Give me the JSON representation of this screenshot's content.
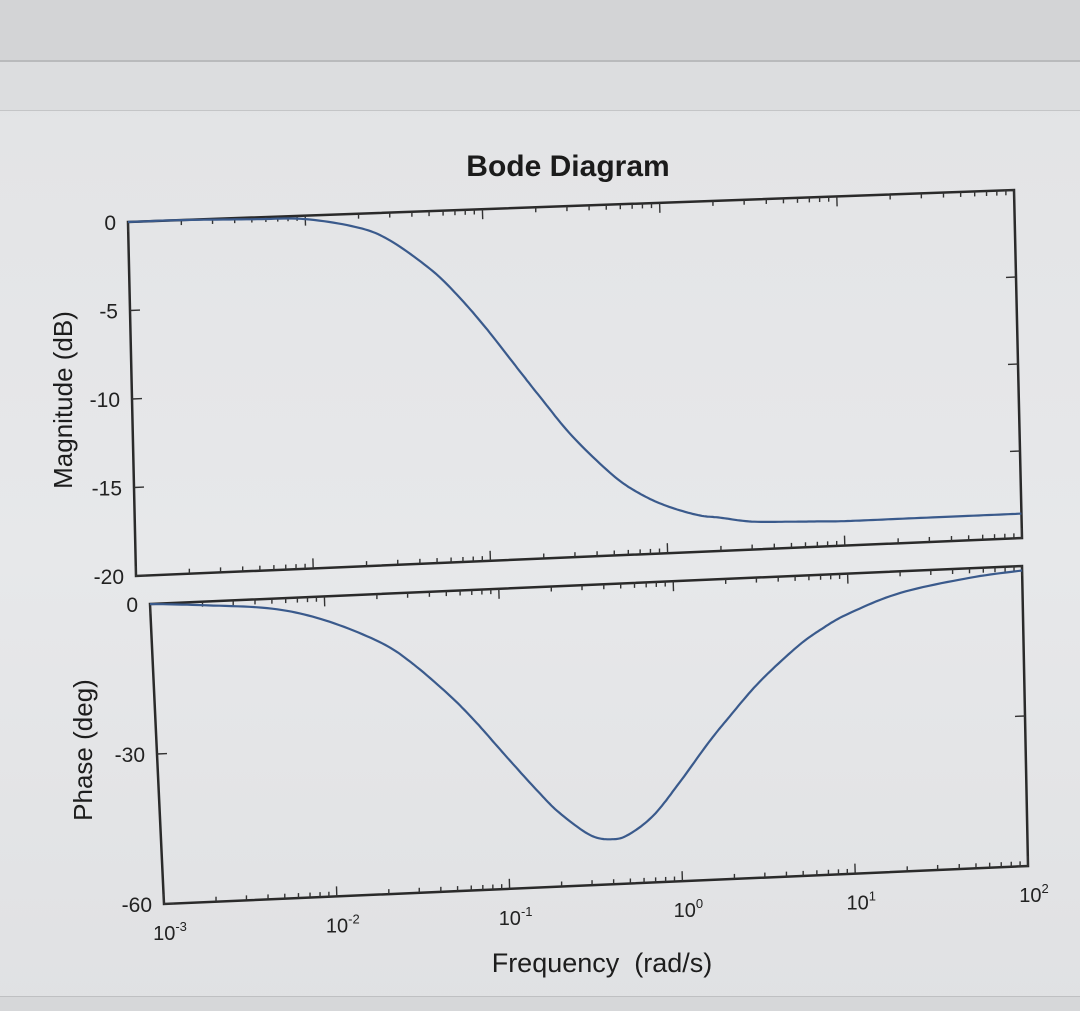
{
  "chart_data": [
    {
      "type": "line",
      "panel": "magnitude",
      "title": "Bode Diagram",
      "ylabel": "Magnitude (dB)",
      "xscale": "log",
      "xlim": [
        0.001,
        100
      ],
      "ylim": [
        -20,
        0
      ],
      "yticks": [
        "0",
        "-5",
        "-10",
        "-15",
        "-20"
      ],
      "series": [
        {
          "x": [
            0.001,
            0.002,
            0.005,
            0.01,
            0.02,
            0.03,
            0.05,
            0.07,
            0.1,
            0.15,
            0.2,
            0.3,
            0.5,
            0.7,
            1,
            1.5,
            2,
            3,
            5,
            7,
            10,
            20,
            50,
            100
          ],
          "values": [
            0,
            0,
            -0.1,
            -0.2,
            -0.8,
            -1.6,
            -3.3,
            -4.8,
            -6.7,
            -9.1,
            -10.8,
            -13.1,
            -15.4,
            -16.5,
            -17.3,
            -17.9,
            -18.1,
            -18.4,
            -18.5,
            -18.55,
            -18.6,
            -18.6,
            -18.6,
            -18.6
          ]
        }
      ]
    },
    {
      "type": "line",
      "panel": "phase",
      "ylabel": "Phase (deg)",
      "xlabel": "Frequency  (rad/s)",
      "xscale": "log",
      "xlim": [
        0.001,
        100
      ],
      "ylim": [
        -60,
        0
      ],
      "yticks": [
        "0",
        "-30",
        "-60"
      ],
      "xticks": [
        {
          "base": "10",
          "exp": "-3"
        },
        {
          "base": "10",
          "exp": "-2"
        },
        {
          "base": "10",
          "exp": "-1"
        },
        {
          "base": "10",
          "exp": "0"
        },
        {
          "base": "10",
          "exp": "1"
        },
        {
          "base": "10",
          "exp": "2"
        }
      ],
      "series": [
        {
          "x": [
            0.001,
            0.002,
            0.005,
            0.01,
            0.02,
            0.03,
            0.05,
            0.07,
            0.1,
            0.15,
            0.2,
            0.3,
            0.4,
            0.5,
            0.7,
            1,
            1.5,
            2,
            3,
            5,
            7,
            10,
            20,
            50,
            100
          ],
          "values": [
            0,
            -0.7,
            -2.0,
            -4.8,
            -9.5,
            -13.8,
            -21,
            -26.6,
            -33.2,
            -40.5,
            -45.2,
            -50.0,
            -51.0,
            -50.2,
            -46.6,
            -40.3,
            -32.5,
            -27.5,
            -20.9,
            -14.2,
            -10.8,
            -8.0,
            -4.3,
            -1.9,
            -0.9
          ]
        }
      ]
    }
  ]
}
